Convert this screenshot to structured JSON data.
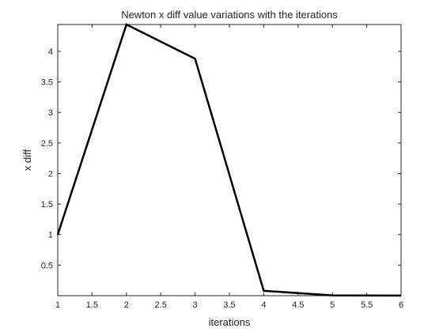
{
  "chart_data": {
    "type": "line",
    "title": "Newton x diff value variations with the iterations",
    "xlabel": "iterations",
    "ylabel": "x diff",
    "x": [
      1,
      2,
      3,
      4,
      5,
      6
    ],
    "series": [
      {
        "values": [
          1.0,
          4.44,
          3.88,
          0.08,
          0.005,
          0.002
        ],
        "color": "#000000"
      }
    ],
    "xlim": [
      1,
      6
    ],
    "ylim": [
      0,
      4.44
    ],
    "xticks": [
      1,
      1.5,
      2,
      2.5,
      3,
      3.5,
      4,
      4.5,
      5,
      5.5,
      6
    ],
    "xtick_labels": [
      "1",
      "1.5",
      "2",
      "2.5",
      "3",
      "3.5",
      "4",
      "4.5",
      "5",
      "5.5",
      "6"
    ],
    "yticks": [
      0.5,
      1,
      1.5,
      2,
      2.5,
      3,
      3.5,
      4
    ],
    "ytick_labels": [
      "0.5",
      "1",
      "1.5",
      "2",
      "2.5",
      "3",
      "3.5",
      "4"
    ],
    "grid": false,
    "legend": "none",
    "axis_color": "#262626",
    "background": "#ffffff"
  }
}
